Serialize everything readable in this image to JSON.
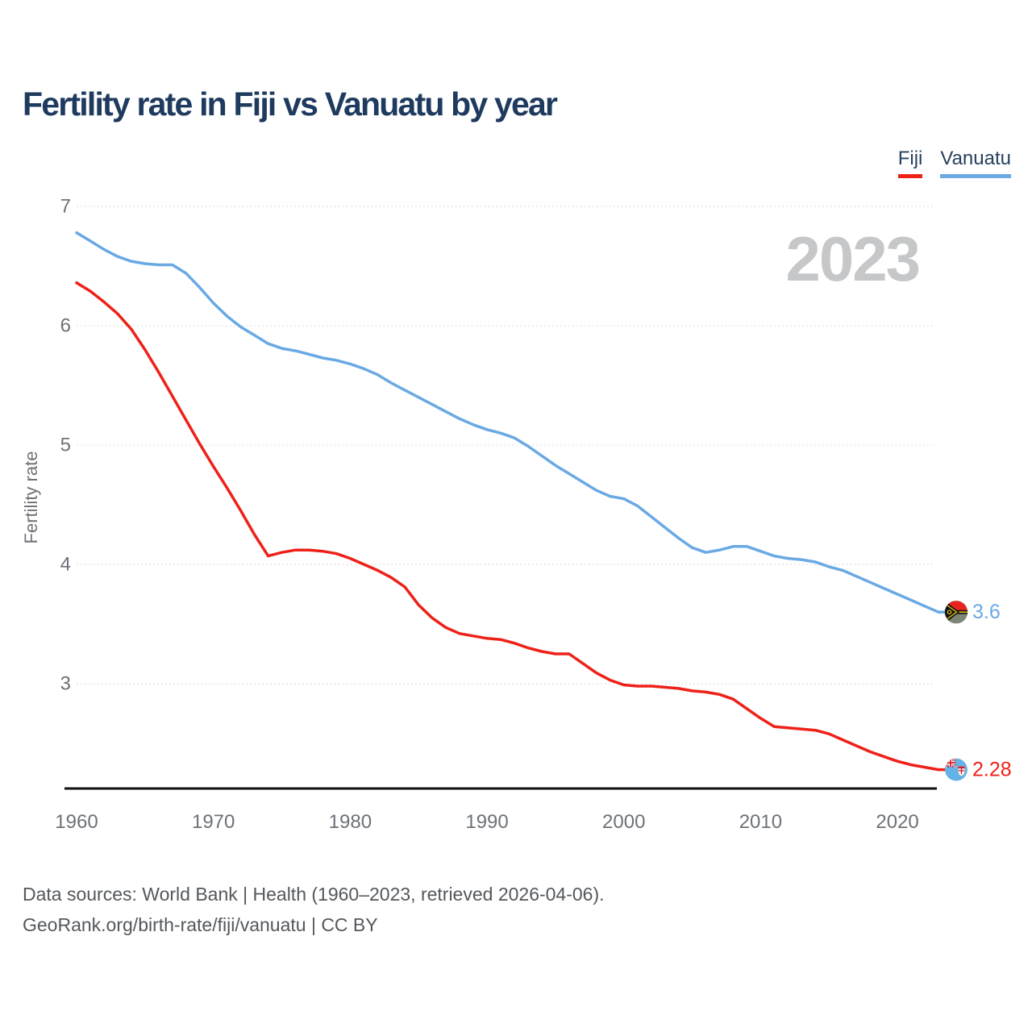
{
  "title": "Fertility rate in Fiji vs Vanuatu by year",
  "watermark": "2023",
  "legend": {
    "items": [
      {
        "label": "Fiji",
        "color": "#ee2119"
      },
      {
        "label": "Vanuatu",
        "color": "#6aa9e4"
      }
    ]
  },
  "colors": {
    "fiji_line": "#ee2119",
    "vanuatu_line": "#6aa9e4",
    "title_text": "#1e3a5e",
    "axis_text": "#6d7278",
    "watermark_text": "#c6c7c9",
    "gridline": "#dcdcdc",
    "axis_line": "#111111"
  },
  "end_labels": {
    "fiji": "2.28",
    "vanuatu": "3.6"
  },
  "footer": {
    "line1": "Data sources: World Bank | Health (1960–2023, retrieved 2026-04-06).",
    "line2": "GeoRank.org/birth-rate/fiji/vanuatu | CC BY"
  },
  "chart_data": {
    "type": "line",
    "title": "Fertility rate in Fiji vs Vanuatu by year",
    "xlabel": "",
    "ylabel": "Fertility rate",
    "grid": "horizontal-dashed",
    "legend_position": "top-right",
    "xlim": [
      1960,
      2023
    ],
    "ylim": [
      2.1,
      7.3
    ],
    "xticks": [
      1960,
      1970,
      1980,
      1990,
      2000,
      2010,
      2020
    ],
    "yticks": [
      3,
      4,
      5,
      6,
      7
    ],
    "x": [
      1960,
      1961,
      1962,
      1963,
      1964,
      1965,
      1966,
      1967,
      1968,
      1969,
      1970,
      1971,
      1972,
      1973,
      1974,
      1975,
      1976,
      1977,
      1978,
      1979,
      1980,
      1981,
      1982,
      1983,
      1984,
      1985,
      1986,
      1987,
      1988,
      1989,
      1990,
      1991,
      1992,
      1993,
      1994,
      1995,
      1996,
      1997,
      1998,
      1999,
      2000,
      2001,
      2002,
      2003,
      2004,
      2005,
      2006,
      2007,
      2008,
      2009,
      2010,
      2011,
      2012,
      2013,
      2014,
      2015,
      2016,
      2017,
      2018,
      2019,
      2020,
      2021,
      2022,
      2023
    ],
    "series": [
      {
        "name": "Fiji",
        "color": "#ee2119",
        "end_label": "2.28",
        "values": [
          6.36,
          6.29,
          6.2,
          6.1,
          5.97,
          5.8,
          5.61,
          5.41,
          5.21,
          5.01,
          4.82,
          4.64,
          4.45,
          4.25,
          4.07,
          4.1,
          4.12,
          4.12,
          4.11,
          4.09,
          4.05,
          4.0,
          3.95,
          3.89,
          3.81,
          3.66,
          3.55,
          3.47,
          3.42,
          3.4,
          3.38,
          3.37,
          3.34,
          3.3,
          3.27,
          3.25,
          3.25,
          3.17,
          3.09,
          3.03,
          2.99,
          2.98,
          2.98,
          2.97,
          2.96,
          2.94,
          2.93,
          2.91,
          2.87,
          2.79,
          2.71,
          2.64,
          2.63,
          2.62,
          2.61,
          2.58,
          2.53,
          2.48,
          2.43,
          2.39,
          2.35,
          2.32,
          2.3,
          2.28
        ]
      },
      {
        "name": "Vanuatu",
        "color": "#6aa9e4",
        "end_label": "3.6",
        "values": [
          6.78,
          6.71,
          6.64,
          6.58,
          6.54,
          6.52,
          6.51,
          6.51,
          6.44,
          6.32,
          6.19,
          6.08,
          5.99,
          5.92,
          5.85,
          5.81,
          5.79,
          5.76,
          5.73,
          5.71,
          5.68,
          5.64,
          5.59,
          5.52,
          5.46,
          5.4,
          5.34,
          5.28,
          5.22,
          5.17,
          5.13,
          5.1,
          5.06,
          4.99,
          4.91,
          4.83,
          4.76,
          4.69,
          4.62,
          4.57,
          4.55,
          4.49,
          4.4,
          4.31,
          4.22,
          4.14,
          4.1,
          4.12,
          4.15,
          4.15,
          4.11,
          4.07,
          4.05,
          4.04,
          4.02,
          3.98,
          3.95,
          3.9,
          3.85,
          3.8,
          3.75,
          3.7,
          3.65,
          3.6
        ]
      }
    ]
  }
}
